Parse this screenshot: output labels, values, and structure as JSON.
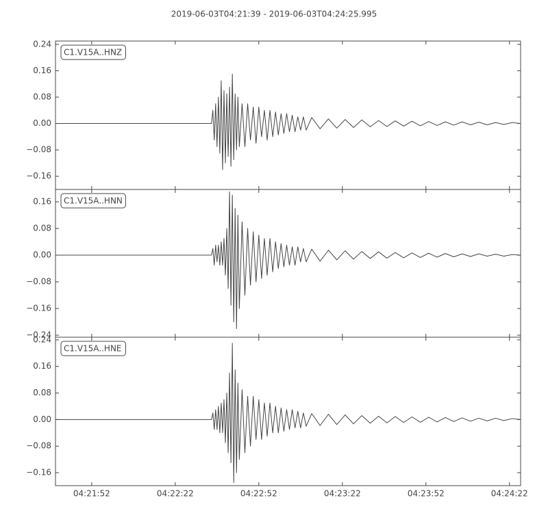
{
  "title": "2019-06-03T04:21:39  -  2019-06-03T04:24:25.995",
  "chart_data": [
    {
      "type": "line",
      "x": [
        "04:21:39",
        "04:22:35",
        "04:22:35.5",
        "04:22:36",
        "04:22:36.5",
        "04:22:37",
        "04:22:37.5",
        "04:22:38",
        "04:22:38.5",
        "04:22:39",
        "04:22:39.5",
        "04:22:40",
        "04:22:40.5",
        "04:22:41",
        "04:22:41.5",
        "04:22:42",
        "04:22:42.5",
        "04:22:43",
        "04:22:43.5",
        "04:22:44",
        "04:22:44.5",
        "04:22:45",
        "04:22:46",
        "04:22:47",
        "04:22:48",
        "04:22:49",
        "04:22:50",
        "04:22:51",
        "04:22:52",
        "04:22:53",
        "04:22:54",
        "04:22:55",
        "04:22:56",
        "04:22:57",
        "04:22:58",
        "04:22:59",
        "04:23:00",
        "04:23:01",
        "04:23:02",
        "04:23:03",
        "04:23:04",
        "04:23:05",
        "04:23:06",
        "04:23:07",
        "04:23:08",
        "04:23:09",
        "04:23:11",
        "04:23:14",
        "04:23:17",
        "04:23:20",
        "04:23:23",
        "04:23:26",
        "04:23:29",
        "04:23:32",
        "04:23:35",
        "04:23:38",
        "04:23:41",
        "04:23:44",
        "04:23:47",
        "04:23:50",
        "04:23:53",
        "04:23:56",
        "04:23:59",
        "04:24:02",
        "04:24:05",
        "04:24:08",
        "04:24:11",
        "04:24:14",
        "04:24:17",
        "04:24:20",
        "04:24:23",
        "04:24:25.995"
      ],
      "series": [
        {
          "name": "C1.V15A..HNZ",
          "color": "#444444",
          "values": [
            0,
            0,
            0.04,
            -0.05,
            0.06,
            -0.07,
            0.08,
            -0.09,
            0.13,
            -0.14,
            0.1,
            -0.12,
            0.09,
            -0.1,
            0.11,
            -0.13,
            0.15,
            -0.11,
            0.09,
            -0.08,
            0.08,
            -0.07,
            0.06,
            -0.07,
            0.06,
            -0.05,
            0.05,
            -0.06,
            0.05,
            -0.04,
            0.04,
            -0.05,
            0.04,
            -0.04,
            0.035,
            -0.035,
            0.03,
            -0.03,
            0.03,
            -0.025,
            0.025,
            -0.025,
            0.02,
            -0.02,
            0.02,
            -0.02,
            0.018,
            -0.016,
            0.014,
            -0.014,
            0.012,
            -0.012,
            0.011,
            -0.01,
            0.009,
            -0.009,
            0.008,
            -0.008,
            0.007,
            -0.007,
            0.006,
            -0.006,
            0.005,
            -0.005,
            0.005,
            -0.004,
            0.004,
            -0.004,
            0.003,
            -0.003,
            0.003,
            0
          ]
        }
      ],
      "xlim": [
        "04:21:39",
        "04:24:25.995"
      ],
      "xticks": [
        "04:21:52",
        "04:22:22",
        "04:22:52",
        "04:23:22",
        "04:23:52",
        "04:24:22"
      ],
      "ylim": [
        -0.2,
        0.25
      ],
      "yticks": [
        {
          "value": -0.16,
          "label": "−0.16"
        },
        {
          "value": -0.08,
          "label": "−0.08"
        },
        {
          "value": 0,
          "label": "0.00"
        },
        {
          "value": 0.08,
          "label": "0.08"
        },
        {
          "value": 0.16,
          "label": "0.16"
        },
        {
          "value": 0.24,
          "label": "0.24"
        }
      ]
    },
    {
      "type": "line",
      "x": [
        "04:21:39",
        "04:22:35",
        "04:22:35.5",
        "04:22:36",
        "04:22:36.5",
        "04:22:37",
        "04:22:37.5",
        "04:22:38",
        "04:22:38.5",
        "04:22:39",
        "04:22:39.5",
        "04:22:40",
        "04:22:40.5",
        "04:22:41",
        "04:22:41.5",
        "04:22:42",
        "04:22:42.5",
        "04:22:43",
        "04:22:43.5",
        "04:22:44",
        "04:22:44.5",
        "04:22:45",
        "04:22:46",
        "04:22:47",
        "04:22:48",
        "04:22:49",
        "04:22:50",
        "04:22:51",
        "04:22:52",
        "04:22:53",
        "04:22:54",
        "04:22:55",
        "04:22:56",
        "04:22:57",
        "04:22:58",
        "04:22:59",
        "04:23:00",
        "04:23:01",
        "04:23:02",
        "04:23:03",
        "04:23:04",
        "04:23:05",
        "04:23:06",
        "04:23:07",
        "04:23:08",
        "04:23:09",
        "04:23:11",
        "04:23:14",
        "04:23:17",
        "04:23:20",
        "04:23:23",
        "04:23:26",
        "04:23:29",
        "04:23:32",
        "04:23:35",
        "04:23:38",
        "04:23:41",
        "04:23:44",
        "04:23:47",
        "04:23:50",
        "04:23:53",
        "04:23:56",
        "04:23:59",
        "04:24:02",
        "04:24:05",
        "04:24:08",
        "04:24:11",
        "04:24:14",
        "04:24:17",
        "04:24:20",
        "04:24:23",
        "04:24:25.995"
      ],
      "series": [
        {
          "name": "C1.V15A..HNN",
          "color": "#444444",
          "values": [
            0,
            0,
            0.02,
            -0.03,
            0.03,
            -0.02,
            0.03,
            -0.03,
            0.04,
            -0.03,
            0.05,
            -0.06,
            0.08,
            -0.1,
            0.19,
            -0.15,
            0.18,
            -0.2,
            0.14,
            -0.22,
            0.12,
            -0.16,
            0.1,
            -0.12,
            0.08,
            -0.09,
            0.07,
            -0.08,
            0.06,
            -0.07,
            0.05,
            -0.06,
            0.05,
            -0.05,
            0.04,
            -0.04,
            0.035,
            -0.035,
            0.03,
            -0.03,
            0.025,
            -0.03,
            0.025,
            -0.02,
            0.02,
            -0.02,
            0.018,
            -0.018,
            0.015,
            -0.014,
            0.013,
            -0.012,
            0.011,
            -0.01,
            0.01,
            -0.009,
            0.008,
            -0.008,
            0.007,
            -0.007,
            0.006,
            -0.006,
            0.005,
            -0.005,
            0.004,
            -0.004,
            0.004,
            -0.003,
            0.003,
            -0.003,
            0.002,
            0
          ]
        }
      ],
      "xlim": [
        "04:21:39",
        "04:24:25.995"
      ],
      "xticks": [
        "04:21:52",
        "04:22:22",
        "04:22:52",
        "04:23:22",
        "04:23:52",
        "04:24:22"
      ],
      "ylim": [
        -0.246,
        0.197
      ],
      "yticks": [
        {
          "value": -0.24,
          "label": "−0.24"
        },
        {
          "value": -0.16,
          "label": "−0.16"
        },
        {
          "value": -0.08,
          "label": "−0.08"
        },
        {
          "value": 0,
          "label": "0.00"
        },
        {
          "value": 0.08,
          "label": "0.08"
        },
        {
          "value": 0.16,
          "label": "0.16"
        }
      ]
    },
    {
      "type": "line",
      "x": [
        "04:21:39",
        "04:22:35",
        "04:22:35.5",
        "04:22:36",
        "04:22:36.5",
        "04:22:37",
        "04:22:37.5",
        "04:22:38",
        "04:22:38.5",
        "04:22:39",
        "04:22:39.5",
        "04:22:40",
        "04:22:40.5",
        "04:22:41",
        "04:22:41.5",
        "04:22:42",
        "04:22:42.5",
        "04:22:43",
        "04:22:43.5",
        "04:22:44",
        "04:22:44.5",
        "04:22:45",
        "04:22:46",
        "04:22:47",
        "04:22:48",
        "04:22:49",
        "04:22:50",
        "04:22:51",
        "04:22:52",
        "04:22:53",
        "04:22:54",
        "04:22:55",
        "04:22:56",
        "04:22:57",
        "04:22:58",
        "04:22:59",
        "04:23:00",
        "04:23:01",
        "04:23:02",
        "04:23:03",
        "04:23:04",
        "04:23:05",
        "04:23:06",
        "04:23:07",
        "04:23:08",
        "04:23:09",
        "04:23:11",
        "04:23:14",
        "04:23:17",
        "04:23:20",
        "04:23:23",
        "04:23:26",
        "04:23:29",
        "04:23:32",
        "04:23:35",
        "04:23:38",
        "04:23:41",
        "04:23:44",
        "04:23:47",
        "04:23:50",
        "04:23:53",
        "04:23:56",
        "04:23:59",
        "04:24:02",
        "04:24:05",
        "04:24:08",
        "04:24:11",
        "04:24:14",
        "04:24:17",
        "04:24:20",
        "04:24:23",
        "04:24:25.995"
      ],
      "series": [
        {
          "name": "C1.V15A..HNE",
          "color": "#444444",
          "values": [
            0,
            0,
            0.02,
            -0.03,
            0.03,
            -0.03,
            0.04,
            -0.04,
            0.05,
            -0.04,
            0.06,
            -0.07,
            0.08,
            -0.1,
            0.14,
            -0.13,
            0.23,
            -0.19,
            0.15,
            -0.16,
            0.11,
            -0.12,
            0.09,
            -0.1,
            0.07,
            -0.08,
            0.07,
            -0.06,
            0.06,
            -0.06,
            0.05,
            -0.05,
            0.05,
            -0.04,
            0.04,
            -0.04,
            0.035,
            -0.035,
            0.03,
            -0.03,
            0.03,
            -0.025,
            0.025,
            -0.025,
            0.02,
            -0.02,
            0.018,
            -0.018,
            0.016,
            -0.015,
            0.014,
            -0.013,
            0.012,
            -0.011,
            0.01,
            -0.01,
            0.009,
            -0.009,
            0.008,
            -0.008,
            0.007,
            -0.007,
            0.006,
            -0.006,
            0.005,
            -0.005,
            0.004,
            -0.004,
            0.004,
            -0.003,
            0.003,
            0
          ]
        }
      ],
      "xlim": [
        "04:21:39",
        "04:24:25.995"
      ],
      "xticks": [
        {
          "value": "04:21:52",
          "label": "04:21:52"
        },
        {
          "value": "04:22:22",
          "label": "04:22:22"
        },
        {
          "value": "04:22:52",
          "label": "04:22:52"
        },
        {
          "value": "04:23:22",
          "label": "04:23:22"
        },
        {
          "value": "04:23:52",
          "label": "04:23:52"
        },
        {
          "value": "04:24:22",
          "label": "04:24:22"
        }
      ],
      "ylim": [
        -0.199,
        0.248
      ],
      "yticks": [
        {
          "value": -0.16,
          "label": "−0.16"
        },
        {
          "value": -0.08,
          "label": "−0.08"
        },
        {
          "value": 0,
          "label": "0.00"
        },
        {
          "value": 0.08,
          "label": "0.08"
        },
        {
          "value": 0.16,
          "label": "0.16"
        },
        {
          "value": 0.24,
          "label": "0.24"
        }
      ]
    }
  ]
}
